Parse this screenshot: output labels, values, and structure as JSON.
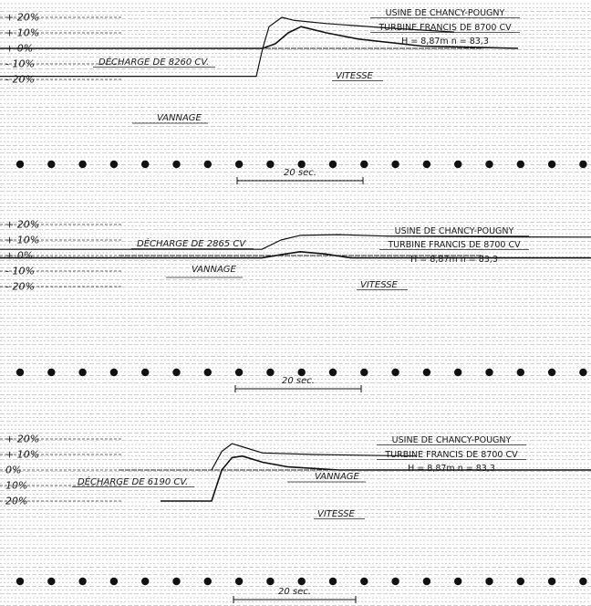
{
  "chart_data": [
    {
      "type": "line",
      "header": [
        "USINE DE CHANCY-POUGNY",
        "TURBINE FRANCIS DE 8700 CV",
        "H = 8,87m    n = 83,3"
      ],
      "y_ticks": [
        "+ 20%",
        "+ 10%",
        "+ 0%",
        "- 10%",
        "- 20%"
      ],
      "ylim": [
        -20,
        20
      ],
      "time_scale_label": "20 sec.",
      "annotations": {
        "load": "DÉCHARGE DE 8260 CV.",
        "speed": "VITESSE",
        "gate": "VANNAGE"
      },
      "series": [
        {
          "name": "VITESSE",
          "x": [
            -70,
            0,
            2,
            4,
            6,
            10,
            15,
            25,
            40
          ],
          "values": [
            0,
            0,
            3,
            10,
            14,
            10,
            6,
            1.5,
            0
          ]
        },
        {
          "name": "VANNAGE",
          "x": [
            -70,
            -1,
            0,
            1,
            3,
            5,
            10,
            20,
            30
          ],
          "values": [
            -18,
            -18,
            0,
            14,
            20,
            18,
            16,
            13,
            10.5
          ]
        }
      ]
    },
    {
      "type": "line",
      "header": [
        "USINE DE CHANCY-POUGNY",
        "TURBINE FRANCIS DE 8700 CV",
        "H = 8,87m    n = 83,3"
      ],
      "y_ticks": [
        "+ 20%",
        "+ 10%",
        "+ 0%",
        "- 10%",
        "- 20%"
      ],
      "ylim": [
        -20,
        20
      ],
      "time_scale_label": "20 sec.",
      "annotations": {
        "load": "DÉCHARGE DE 2865 CV",
        "speed": "VITESSE",
        "gate": "VANNAGE"
      },
      "series": [
        {
          "name": "VITESSE",
          "x": [
            -60,
            0,
            3,
            6,
            10,
            14,
            20,
            60
          ],
          "values": [
            -1.5,
            -1.5,
            0.5,
            2.5,
            1,
            -1.5,
            -1.5,
            -1.5
          ]
        },
        {
          "name": "VANNAGE",
          "x": [
            -60,
            0,
            3,
            6,
            12,
            20,
            40,
            80
          ],
          "values": [
            4,
            4,
            10,
            13,
            13.5,
            12.5,
            12,
            11.5
          ]
        }
      ]
    },
    {
      "type": "line",
      "header": [
        "USINE DE CHANCY-POUGNY",
        "TURBINE FRANCIS DE 8700 CV",
        "H = 8,87m    n = 83,3"
      ],
      "y_ticks": [
        "+ 20%",
        "+ 10%",
        "0%",
        "10%",
        "20%"
      ],
      "ylim": [
        -20,
        20
      ],
      "time_scale_label": "20 sec.",
      "annotations": {
        "load": "DÉCHARGE DE 6190 CV.",
        "speed": "VITESSE",
        "gate": "VANNAGE"
      },
      "series": [
        {
          "name": "VITESSE",
          "x": [
            -10,
            0,
            2,
            4,
            6,
            10,
            15,
            25,
            100
          ],
          "values": [
            -20,
            -20,
            0,
            8,
            9,
            5,
            2,
            0,
            0
          ]
        },
        {
          "name": "VANNAGE",
          "x": [
            0,
            2,
            4,
            6,
            10,
            20,
            40
          ],
          "values": [
            0,
            12,
            17,
            15,
            11,
            10,
            9
          ]
        }
      ]
    }
  ]
}
